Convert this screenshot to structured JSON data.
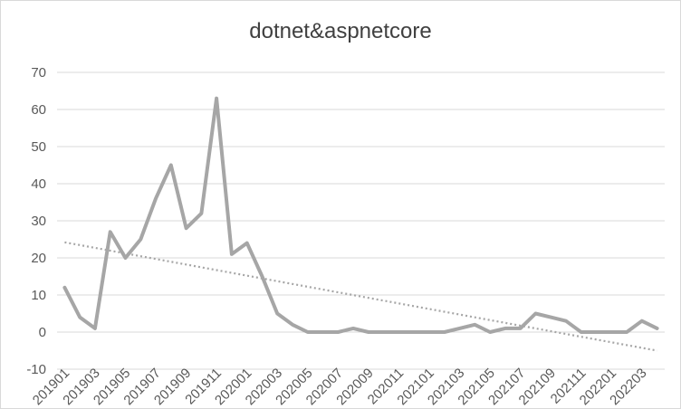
{
  "chart_data": {
    "type": "line",
    "title": "dotnet&aspnetcore",
    "xlabel": "",
    "ylabel": "",
    "ylim": [
      -10,
      70
    ],
    "yticks": [
      -10,
      0,
      10,
      20,
      30,
      40,
      50,
      60,
      70
    ],
    "grid": "horizontal",
    "legend": "none",
    "colors": {
      "series": "#a6a6a6",
      "trendline": "#a6a6a6",
      "grid": "#d9d9d9",
      "text": "#595959"
    },
    "x": [
      "201901",
      "201902",
      "201903",
      "201904",
      "201905",
      "201906",
      "201907",
      "201908",
      "201909",
      "201910",
      "201911",
      "201912",
      "202001",
      "202002",
      "202003",
      "202004",
      "202005",
      "202006",
      "202007",
      "202008",
      "202009",
      "202010",
      "202011",
      "202012",
      "202101",
      "202102",
      "202103",
      "202104",
      "202105",
      "202106",
      "202107",
      "202108",
      "202109",
      "202110",
      "202111",
      "202112",
      "202201",
      "202202",
      "202203",
      "202204"
    ],
    "xtick_labels": [
      "201901",
      "201903",
      "201905",
      "201907",
      "201909",
      "201911",
      "202001",
      "202003",
      "202005",
      "202007",
      "202009",
      "202011",
      "202101",
      "202103",
      "202105",
      "202107",
      "202109",
      "202111",
      "202201",
      "202203"
    ],
    "series": [
      {
        "values": [
          12,
          4,
          1,
          27,
          20,
          25,
          36,
          45,
          28,
          32,
          63,
          21,
          24,
          15,
          5,
          2,
          0,
          0,
          0,
          1,
          0,
          0,
          0,
          0,
          0,
          0,
          1,
          2,
          0,
          1,
          1,
          5,
          4,
          3,
          0,
          0,
          0,
          0,
          3,
          1
        ]
      }
    ],
    "trendline": {
      "type": "linear",
      "style": "dotted",
      "start": 24.2,
      "end": -5
    }
  }
}
